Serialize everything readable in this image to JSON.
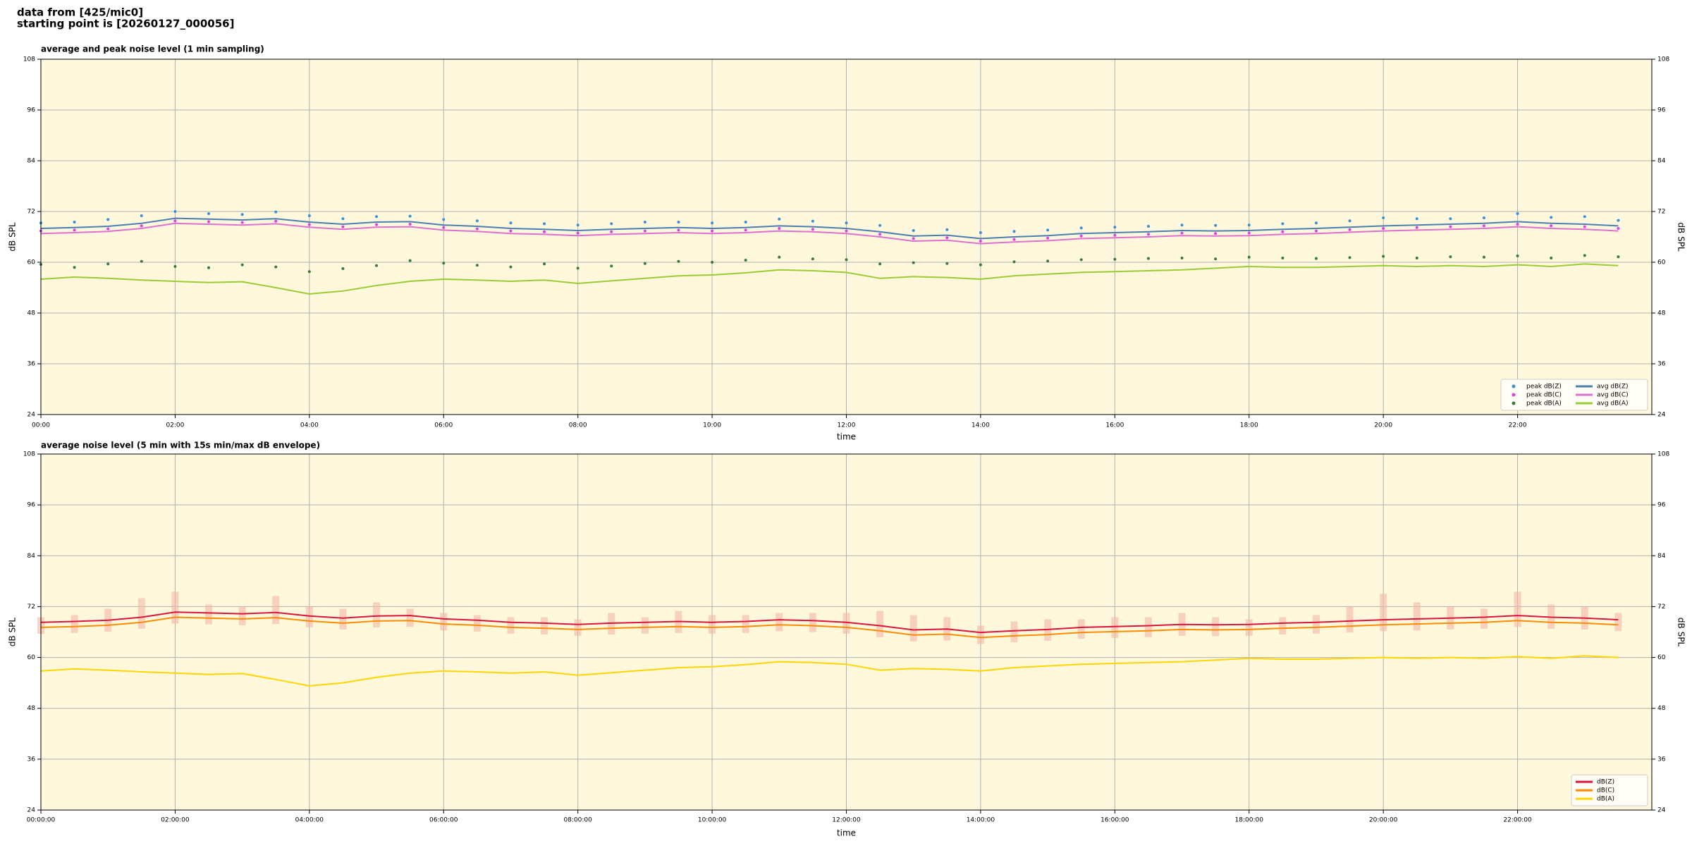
{
  "header": {
    "line1": "data from [425/mic0]",
    "line2": "starting point is [20260127_000056]"
  },
  "chart_data": [
    {
      "type": "line",
      "title": "average and peak noise level (1 min sampling)",
      "xlabel": "time",
      "ylabel": "dB SPL",
      "x": [
        "00:00",
        "00:30",
        "01:00",
        "01:30",
        "02:00",
        "02:30",
        "03:00",
        "03:30",
        "04:00",
        "04:30",
        "05:00",
        "05:30",
        "06:00",
        "06:30",
        "07:00",
        "07:30",
        "08:00",
        "08:30",
        "09:00",
        "09:30",
        "10:00",
        "10:30",
        "11:00",
        "11:30",
        "12:00",
        "12:30",
        "13:00",
        "13:30",
        "14:00",
        "14:30",
        "15:00",
        "15:30",
        "16:00",
        "16:30",
        "17:00",
        "17:30",
        "18:00",
        "18:30",
        "19:00",
        "19:30",
        "20:00",
        "20:30",
        "21:00",
        "21:30",
        "22:00",
        "22:30",
        "23:00",
        "23:30"
      ],
      "xlim": [
        "00:00",
        "24:00"
      ],
      "xticks": [
        "00:00",
        "02:00",
        "04:00",
        "06:00",
        "08:00",
        "10:00",
        "12:00",
        "14:00",
        "16:00",
        "18:00",
        "20:00",
        "22:00"
      ],
      "ylim": [
        24,
        108
      ],
      "yticks": [
        24,
        36,
        48,
        60,
        72,
        84,
        96,
        108
      ],
      "grid": true,
      "background": "#fff8dc",
      "legend": "lower right",
      "legend_columns": 2,
      "series": [
        {
          "name": "peak dB(Z)",
          "color": "#3b8fd4",
          "style": "points",
          "values": [
            69.3,
            69.5,
            70.1,
            71.0,
            72.0,
            71.5,
            71.3,
            71.9,
            71.0,
            70.3,
            70.8,
            70.9,
            70.1,
            69.8,
            69.3,
            69.1,
            68.8,
            69.1,
            69.5,
            69.5,
            69.3,
            69.5,
            70.2,
            69.7,
            69.3,
            68.7,
            67.5,
            67.7,
            67.0,
            67.3,
            67.6,
            68.1,
            68.3,
            68.5,
            68.8,
            68.7,
            68.8,
            69.1,
            69.3,
            69.8,
            70.5,
            70.3,
            70.3,
            70.5,
            71.5,
            70.6,
            70.8,
            69.9
          ]
        },
        {
          "name": "peak dB(C)",
          "color": "#e040e0",
          "style": "points",
          "values": [
            67.4,
            67.6,
            67.9,
            68.6,
            69.8,
            69.6,
            69.4,
            69.7,
            68.9,
            68.4,
            68.9,
            69.0,
            68.2,
            67.9,
            67.4,
            67.2,
            66.9,
            67.2,
            67.4,
            67.6,
            67.4,
            67.6,
            68.0,
            67.8,
            67.4,
            66.6,
            65.6,
            65.8,
            65.0,
            65.4,
            65.7,
            66.2,
            66.4,
            66.6,
            66.9,
            66.8,
            66.9,
            67.2,
            67.4,
            67.7,
            68.0,
            68.2,
            68.4,
            68.6,
            69.0,
            68.6,
            68.4,
            68.0
          ]
        },
        {
          "name": "peak dB(A)",
          "color": "#3a7a3a",
          "style": "points",
          "values": [
            59.5,
            58.8,
            59.6,
            60.2,
            59.0,
            58.7,
            59.4,
            58.9,
            57.8,
            58.5,
            59.2,
            60.4,
            59.8,
            59.3,
            58.9,
            59.6,
            58.6,
            59.1,
            59.7,
            60.2,
            60.0,
            60.5,
            61.2,
            60.8,
            60.6,
            59.6,
            59.9,
            59.7,
            59.4,
            60.1,
            60.3,
            60.6,
            60.7,
            60.9,
            61.0,
            60.8,
            61.2,
            61.0,
            60.9,
            61.1,
            61.4,
            61.0,
            61.3,
            61.2,
            61.5,
            61.0,
            61.6,
            61.3
          ]
        },
        {
          "name": "avg dB(Z)",
          "color": "#4a7fb0",
          "style": "line",
          "values": [
            68.0,
            68.2,
            68.5,
            69.2,
            70.4,
            70.2,
            70.0,
            70.3,
            69.5,
            69.0,
            69.5,
            69.6,
            68.8,
            68.5,
            68.0,
            67.8,
            67.5,
            67.8,
            68.0,
            68.2,
            68.0,
            68.2,
            68.6,
            68.4,
            68.0,
            67.2,
            66.2,
            66.4,
            65.6,
            66.0,
            66.3,
            66.8,
            67.0,
            67.2,
            67.5,
            67.4,
            67.5,
            67.8,
            68.0,
            68.3,
            68.6,
            68.8,
            69.0,
            69.2,
            69.6,
            69.2,
            69.0,
            68.6
          ]
        },
        {
          "name": "avg dB(C)",
          "color": "#e070d0",
          "style": "line",
          "values": [
            66.8,
            67.0,
            67.3,
            68.0,
            69.2,
            69.0,
            68.8,
            69.1,
            68.3,
            67.8,
            68.3,
            68.4,
            67.6,
            67.3,
            66.8,
            66.6,
            66.3,
            66.6,
            66.8,
            67.0,
            66.8,
            67.0,
            67.4,
            67.2,
            66.8,
            66.0,
            65.0,
            65.2,
            64.4,
            64.8,
            65.1,
            65.6,
            65.8,
            66.0,
            66.3,
            66.2,
            66.3,
            66.6,
            66.8,
            67.1,
            67.4,
            67.6,
            67.8,
            68.0,
            68.4,
            68.0,
            67.8,
            67.4
          ]
        },
        {
          "name": "avg dB(A)",
          "color": "#9acd32",
          "style": "line",
          "values": [
            56.0,
            56.5,
            56.2,
            55.8,
            55.5,
            55.2,
            55.4,
            54.0,
            52.5,
            53.2,
            54.5,
            55.5,
            56.0,
            55.8,
            55.5,
            55.8,
            55.0,
            55.6,
            56.2,
            56.8,
            57.0,
            57.5,
            58.2,
            58.0,
            57.6,
            56.2,
            56.6,
            56.4,
            56.0,
            56.8,
            57.2,
            57.6,
            57.8,
            58.0,
            58.2,
            58.6,
            59.0,
            58.8,
            58.8,
            59.0,
            59.2,
            59.0,
            59.2,
            59.0,
            59.4,
            59.0,
            59.6,
            59.2
          ]
        }
      ]
    },
    {
      "type": "line",
      "title": "average noise level (5 min with 15s min/max dB envelope)",
      "xlabel": "time",
      "ylabel": "dB SPL",
      "x": [
        "00:00:00",
        "00:30:00",
        "01:00:00",
        "01:30:00",
        "02:00:00",
        "02:30:00",
        "03:00:00",
        "03:30:00",
        "04:00:00",
        "04:30:00",
        "05:00:00",
        "05:30:00",
        "06:00:00",
        "06:30:00",
        "07:00:00",
        "07:30:00",
        "08:00:00",
        "08:30:00",
        "09:00:00",
        "09:30:00",
        "10:00:00",
        "10:30:00",
        "11:00:00",
        "11:30:00",
        "12:00:00",
        "12:30:00",
        "13:00:00",
        "13:30:00",
        "14:00:00",
        "14:30:00",
        "15:00:00",
        "15:30:00",
        "16:00:00",
        "16:30:00",
        "17:00:00",
        "17:30:00",
        "18:00:00",
        "18:30:00",
        "19:00:00",
        "19:30:00",
        "20:00:00",
        "20:30:00",
        "21:00:00",
        "21:30:00",
        "22:00:00",
        "22:30:00",
        "23:00:00",
        "23:30:00"
      ],
      "xlim": [
        "00:00:00",
        "24:00:00"
      ],
      "xticks": [
        "00:00:00",
        "02:00:00",
        "04:00:00",
        "06:00:00",
        "08:00:00",
        "10:00:00",
        "12:00:00",
        "14:00:00",
        "16:00:00",
        "18:00:00",
        "20:00:00",
        "22:00:00"
      ],
      "ylim": [
        24,
        108
      ],
      "yticks": [
        24,
        36,
        48,
        60,
        72,
        84,
        96,
        108
      ],
      "grid": true,
      "background": "#fff8dc",
      "legend": "lower right",
      "legend_columns": 1,
      "envelope": {
        "color": "#f4b8a8",
        "high": [
          69.5,
          70.0,
          71.5,
          74.0,
          75.5,
          72.5,
          72.0,
          74.5,
          72.0,
          71.5,
          73.0,
          71.5,
          70.5,
          70.0,
          69.5,
          69.5,
          69.0,
          70.5,
          69.5,
          71.0,
          70.0,
          70.0,
          70.5,
          70.5,
          70.5,
          71.0,
          70.0,
          69.5,
          67.5,
          68.5,
          69.0,
          69.0,
          69.5,
          69.5,
          70.5,
          69.5,
          69.0,
          69.5,
          70.0,
          72.0,
          75.0,
          73.0,
          72.0,
          71.5,
          75.5,
          72.5,
          72.0,
          70.5
        ],
        "low": [
          65.6,
          65.8,
          66.1,
          66.8,
          68.0,
          67.8,
          67.6,
          67.9,
          67.1,
          66.6,
          67.1,
          67.2,
          66.4,
          66.1,
          65.6,
          65.4,
          65.1,
          65.4,
          65.6,
          65.8,
          65.6,
          65.8,
          66.2,
          66.0,
          65.6,
          64.8,
          63.8,
          64.0,
          63.2,
          63.6,
          63.9,
          64.4,
          64.6,
          64.8,
          65.1,
          65.0,
          65.1,
          65.4,
          65.6,
          65.9,
          66.2,
          66.4,
          66.6,
          66.8,
          67.2,
          66.8,
          66.6,
          66.2
        ]
      },
      "series": [
        {
          "name": "dB(Z)",
          "color": "#dc143c",
          "style": "line",
          "values": [
            68.3,
            68.5,
            68.8,
            69.5,
            70.7,
            70.5,
            70.3,
            70.6,
            69.8,
            69.3,
            69.8,
            69.9,
            69.1,
            68.8,
            68.3,
            68.1,
            67.8,
            68.1,
            68.3,
            68.5,
            68.3,
            68.5,
            68.9,
            68.7,
            68.3,
            67.5,
            66.5,
            66.7,
            65.9,
            66.3,
            66.6,
            67.1,
            67.3,
            67.5,
            67.8,
            67.7,
            67.8,
            68.1,
            68.3,
            68.6,
            68.9,
            69.1,
            69.3,
            69.5,
            69.9,
            69.5,
            69.3,
            68.9
          ]
        },
        {
          "name": "dB(C)",
          "color": "#ff8c00",
          "style": "line",
          "values": [
            67.1,
            67.3,
            67.6,
            68.3,
            69.5,
            69.3,
            69.1,
            69.4,
            68.6,
            68.1,
            68.6,
            68.7,
            67.9,
            67.6,
            67.1,
            66.9,
            66.6,
            66.9,
            67.1,
            67.3,
            67.1,
            67.3,
            67.7,
            67.5,
            67.1,
            66.3,
            65.3,
            65.5,
            64.7,
            65.1,
            65.4,
            65.9,
            66.1,
            66.3,
            66.6,
            66.5,
            66.6,
            66.9,
            67.1,
            67.4,
            67.7,
            67.9,
            68.1,
            68.3,
            68.7,
            68.3,
            68.1,
            67.7
          ]
        },
        {
          "name": "dB(A)",
          "color": "#ffd700",
          "style": "line",
          "values": [
            56.8,
            57.3,
            57.0,
            56.6,
            56.3,
            56.0,
            56.2,
            54.8,
            53.3,
            54.0,
            55.3,
            56.3,
            56.8,
            56.6,
            56.3,
            56.6,
            55.8,
            56.4,
            57.0,
            57.6,
            57.8,
            58.3,
            59.0,
            58.8,
            58.4,
            57.0,
            57.4,
            57.2,
            56.8,
            57.6,
            58.0,
            58.4,
            58.6,
            58.8,
            59.0,
            59.4,
            59.8,
            59.6,
            59.6,
            59.8,
            60.0,
            59.8,
            60.0,
            59.8,
            60.2,
            59.8,
            60.4,
            60.0
          ]
        }
      ]
    }
  ]
}
